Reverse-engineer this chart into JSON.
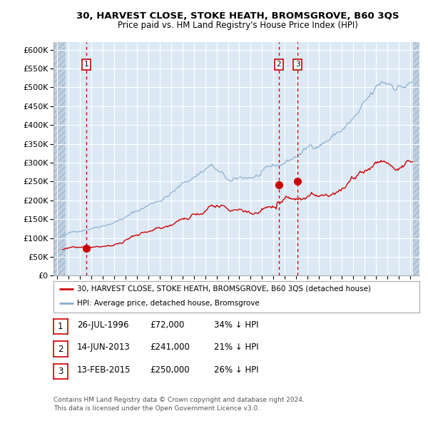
{
  "title1": "30, HARVEST CLOSE, STOKE HEATH, BROMSGROVE, B60 3QS",
  "title2": "Price paid vs. HM Land Registry's House Price Index (HPI)",
  "plot_bg": "#dce9f5",
  "hatch_color": "#b8cede",
  "grid_color": "#ffffff",
  "red_line_color": "#cc0000",
  "blue_line_color": "#88aacc",
  "yticks": [
    0,
    50000,
    100000,
    150000,
    200000,
    250000,
    300000,
    350000,
    400000,
    450000,
    500000,
    550000,
    600000
  ],
  "ytick_labels": [
    "£0",
    "£50K",
    "£100K",
    "£150K",
    "£200K",
    "£250K",
    "£300K",
    "£350K",
    "£400K",
    "£450K",
    "£500K",
    "£550K",
    "£600K"
  ],
  "xmin": 1993.7,
  "xmax": 2025.8,
  "ymin": 0,
  "ymax": 620000,
  "hatch_left_end": 1994.75,
  "hatch_right_start": 2025.25,
  "sale_dates": [
    1996.57,
    2013.45,
    2015.12
  ],
  "sale_prices": [
    72000,
    241000,
    250000
  ],
  "sale_labels": [
    "1",
    "2",
    "3"
  ],
  "legend_line1": "30, HARVEST CLOSE, STOKE HEATH, BROMSGROVE, B60 3QS (detached house)",
  "legend_line2": "HPI: Average price, detached house, Bromsgrove",
  "table_rows": [
    [
      "1",
      "26-JUL-1996",
      "£72,000",
      "34% ↓ HPI"
    ],
    [
      "2",
      "14-JUN-2013",
      "£241,000",
      "21% ↓ HPI"
    ],
    [
      "3",
      "13-FEB-2015",
      "£250,000",
      "26% ↓ HPI"
    ]
  ],
  "footnote1": "Contains HM Land Registry data © Crown copyright and database right 2024.",
  "footnote2": "This data is licensed under the Open Government Licence v3.0."
}
